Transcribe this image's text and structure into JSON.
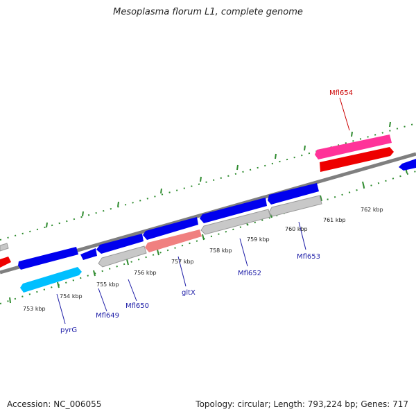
{
  "title": "Mesoplasma florum L1, complete genome",
  "footer": {
    "accession": "Accession: NC_006055",
    "summary": "Topology: circular; Length: 793,224 bp; Genes: 717"
  },
  "colors": {
    "forward_cds": "#0000ee",
    "reverse_cds": "#c8c8c8",
    "rna": "#ff66b3",
    "highlight_cds": "#ee0000",
    "pyrG_cds": "#00bfff",
    "gltX_cds": "#f08080",
    "backbone": "#7f7f7f",
    "tick": "#2e8b2e",
    "label_blue": "#1a1aa6",
    "label_red": "#cc0000"
  },
  "scale_labels": [
    "753 kbp",
    "754 kbp",
    "755 kbp",
    "756 kbp",
    "757 kbp",
    "758 kbp",
    "759 kbp",
    "760 kbp",
    "761 kbp",
    "762 kbp"
  ],
  "gene_labels": [
    {
      "text": "pyrG",
      "color": "label_blue"
    },
    {
      "text": "Mfl649",
      "color": "label_blue"
    },
    {
      "text": "Mfl650",
      "color": "label_blue"
    },
    {
      "text": "gltX",
      "color": "label_blue"
    },
    {
      "text": "Mfl652",
      "color": "label_blue"
    },
    {
      "text": "Mfl653",
      "color": "label_blue"
    },
    {
      "text": "Mfl654",
      "color": "label_red"
    }
  ]
}
